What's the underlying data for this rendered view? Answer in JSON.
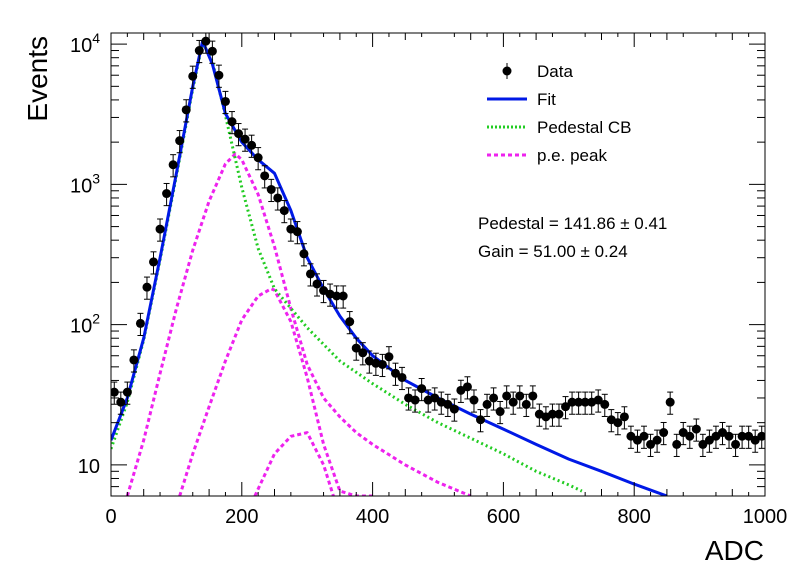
{
  "chart_data": {
    "type": "scatter",
    "xlabel": "ADC",
    "ylabel": "Events",
    "xlim": [
      0,
      1000
    ],
    "ylim": [
      6,
      12000
    ],
    "y_scale": "log",
    "x_ticks": [
      0,
      200,
      400,
      600,
      800,
      1000
    ],
    "x_tick_labels": [
      "0",
      "200",
      "400",
      "600",
      "800",
      "1000"
    ],
    "y_ticks": [
      10,
      100,
      1000,
      10000
    ],
    "y_tick_labels": [
      {
        "base": "10",
        "exp": ""
      },
      {
        "base": "10",
        "exp": "2"
      },
      {
        "base": "10",
        "exp": "3"
      },
      {
        "base": "10",
        "exp": "4"
      }
    ],
    "legend_position": "top-right",
    "legend": [
      {
        "key": "data",
        "label": "Data",
        "color": "#000000",
        "marker": "point-errorbar"
      },
      {
        "key": "fit",
        "label": "Fit",
        "color": "#0019e6",
        "marker": "solid-line"
      },
      {
        "key": "ped",
        "label": "Pedestal CB",
        "color": "#22cc22",
        "marker": "dotted-line"
      },
      {
        "key": "pe",
        "label": "p.e. peak",
        "color": "#ee22ee",
        "marker": "dashed-line"
      }
    ],
    "annotations": [
      "Pedestal = 141.86 ± 0.41",
      "Gain = 51.00 ± 0.24"
    ],
    "series": [
      {
        "name": "Data",
        "x": [
          5,
          15,
          25,
          35,
          45,
          55,
          65,
          75,
          85,
          95,
          105,
          115,
          125,
          135,
          145,
          155,
          165,
          175,
          185,
          195,
          205,
          215,
          225,
          235,
          245,
          255,
          265,
          275,
          285,
          295,
          305,
          315,
          325,
          335,
          345,
          355,
          365,
          375,
          385,
          395,
          405,
          415,
          425,
          435,
          445,
          455,
          465,
          475,
          485,
          495,
          505,
          515,
          525,
          535,
          545,
          555,
          565,
          575,
          585,
          595,
          605,
          615,
          625,
          635,
          645,
          655,
          665,
          675,
          685,
          695,
          705,
          715,
          725,
          735,
          745,
          755,
          765,
          775,
          785,
          795,
          805,
          815,
          825,
          835,
          845,
          855,
          865,
          875,
          885,
          895,
          905,
          915,
          925,
          935,
          945,
          955,
          965,
          975,
          985,
          995
        ],
        "y": [
          33,
          28,
          33,
          56,
          102,
          185,
          280,
          480,
          860,
          1380,
          2050,
          3400,
          5900,
          9000,
          10500,
          8900,
          6000,
          3900,
          2800,
          2300,
          2100,
          1900,
          1550,
          1150,
          920,
          800,
          650,
          480,
          460,
          320,
          230,
          195,
          175,
          165,
          160,
          160,
          105,
          68,
          63,
          55,
          53,
          52,
          59,
          45,
          42,
          30,
          29,
          35,
          29,
          30,
          28,
          27,
          25,
          34,
          36,
          29,
          21,
          27,
          30,
          24,
          31,
          28,
          31,
          27,
          31,
          23,
          22,
          23,
          23,
          26,
          28,
          28,
          28,
          28,
          29,
          27,
          21,
          20,
          22,
          16,
          15,
          16,
          14,
          15,
          17,
          28,
          14,
          17,
          16,
          18,
          14,
          15,
          16,
          17,
          16,
          14,
          16,
          16,
          15,
          16
        ],
        "yerr_frac": 0.18
      },
      {
        "name": "Fit",
        "x": [
          0,
          25,
          50,
          75,
          100,
          125,
          140,
          155,
          175,
          200,
          225,
          250,
          275,
          300,
          325,
          350,
          375,
          400,
          450,
          500,
          550,
          600,
          650,
          700,
          750,
          800,
          850
        ],
        "y": [
          15,
          30,
          80,
          300,
          1200,
          5000,
          10500,
          7200,
          3200,
          2000,
          1500,
          1200,
          650,
          300,
          180,
          115,
          80,
          60,
          40,
          30,
          23,
          18,
          14,
          11,
          9,
          7.3,
          6
        ]
      },
      {
        "name": "Pedestal CB",
        "x": [
          0,
          25,
          50,
          75,
          100,
          125,
          140,
          155,
          175,
          200,
          225,
          250,
          300,
          350,
          400,
          450,
          500,
          550,
          600,
          650,
          700,
          720
        ],
        "y": [
          13,
          28,
          78,
          290,
          1150,
          4800,
          10200,
          7500,
          3100,
          950,
          350,
          180,
          95,
          55,
          38,
          27,
          20,
          15.5,
          12,
          9,
          7.2,
          6.5
        ]
      },
      {
        "name": "p.e. peak 1",
        "x": [
          25,
          50,
          75,
          100,
          125,
          150,
          175,
          190,
          200,
          225,
          250,
          275,
          300,
          325,
          350,
          375,
          400,
          450,
          500,
          550
        ],
        "y": [
          6,
          15,
          45,
          130,
          340,
          760,
          1400,
          1650,
          1500,
          850,
          360,
          130,
          52,
          30,
          22,
          17,
          14,
          10,
          7.5,
          6
        ]
      },
      {
        "name": "p.e. peak 2",
        "x": [
          105,
          125,
          150,
          175,
          200,
          225,
          245,
          250,
          275,
          300,
          325,
          350,
          375,
          400
        ],
        "y": [
          6,
          12,
          26,
          55,
          108,
          160,
          180,
          176,
          105,
          42,
          14,
          6.5,
          6,
          6
        ]
      },
      {
        "name": "p.e. peak 3",
        "x": [
          220,
          250,
          275,
          300,
          325,
          340
        ],
        "y": [
          6,
          12,
          16,
          17,
          10,
          6
        ]
      }
    ]
  }
}
